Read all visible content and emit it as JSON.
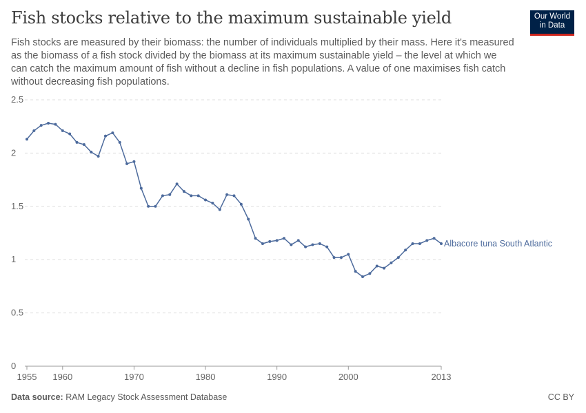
{
  "header": {
    "title": "Fish stocks relative to the maximum sustainable yield",
    "subtitle": "Fish stocks are measured by their biomass: the number of individuals multiplied by their mass. Here it's measured as the biomass of a fish stock divided by the biomass at its maximum sustainable yield – the level at which we can catch the maximum amount of fish without a decline in fish populations. A value of one maximises fish catch without decreasing fish populations.",
    "logo": "Our World in Data"
  },
  "footer": {
    "source_label": "Data source:",
    "source": "RAM Legacy Stock Assessment Database",
    "license": "CC BY"
  },
  "chart_data": {
    "type": "line",
    "title": "Fish stocks relative to the maximum sustainable yield",
    "xlabel": "",
    "ylabel": "",
    "xlim": [
      1955,
      2013
    ],
    "ylim": [
      0,
      2.5
    ],
    "grid": "horizontal dashed",
    "legend": "end-of-line label",
    "x_ticks": [
      "1955",
      "1960",
      "1970",
      "1980",
      "1990",
      "2000",
      "2013"
    ],
    "y_ticks": [
      "0",
      "0.5",
      "1",
      "1.5",
      "2",
      "2.5"
    ],
    "colors": {
      "series": "#4c6a9c"
    },
    "series": [
      {
        "name": "Albacore tuna South Atlantic",
        "x": [
          1955,
          1956,
          1957,
          1958,
          1959,
          1960,
          1961,
          1962,
          1963,
          1964,
          1965,
          1966,
          1967,
          1968,
          1969,
          1970,
          1971,
          1972,
          1973,
          1974,
          1975,
          1976,
          1977,
          1978,
          1979,
          1980,
          1981,
          1982,
          1983,
          1984,
          1985,
          1986,
          1987,
          1988,
          1989,
          1990,
          1991,
          1992,
          1993,
          1994,
          1995,
          1996,
          1997,
          1998,
          1999,
          2000,
          2001,
          2002,
          2003,
          2004,
          2005,
          2006,
          2007,
          2008,
          2009,
          2010,
          2011,
          2012,
          2013
        ],
        "values": [
          2.13,
          2.21,
          2.26,
          2.28,
          2.27,
          2.21,
          2.18,
          2.1,
          2.08,
          2.01,
          1.97,
          2.16,
          2.19,
          2.1,
          1.9,
          1.92,
          1.67,
          1.5,
          1.5,
          1.6,
          1.61,
          1.71,
          1.64,
          1.6,
          1.6,
          1.56,
          1.53,
          1.47,
          1.61,
          1.6,
          1.52,
          1.38,
          1.2,
          1.15,
          1.17,
          1.18,
          1.2,
          1.14,
          1.18,
          1.12,
          1.14,
          1.15,
          1.12,
          1.02,
          1.02,
          1.05,
          0.89,
          0.84,
          0.87,
          0.94,
          0.92,
          0.97,
          1.02,
          1.09,
          1.15,
          1.15,
          1.18,
          1.2,
          1.15
        ]
      }
    ]
  }
}
